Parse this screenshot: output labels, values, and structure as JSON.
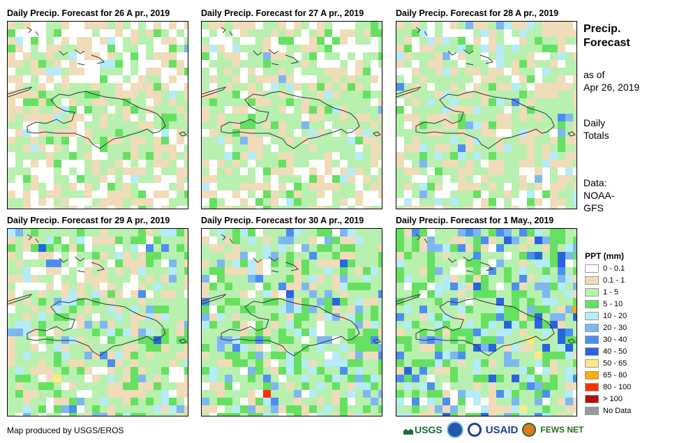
{
  "panels": [
    {
      "title": "Daily Precip. Forecast for 26 A pr., 2019"
    },
    {
      "title": "Daily Precip. Forecast for 27 A pr., 2019"
    },
    {
      "title": "Daily Precip. Forecast for 28 A pr., 2019"
    },
    {
      "title": "Daily Precip. Forecast for 29 A pr., 2019"
    },
    {
      "title": "Daily Precip. Forecast for 30 A pr., 2019"
    },
    {
      "title": "Daily Precip. Forecast for 1 May., 2019"
    }
  ],
  "side_info": {
    "heading_line1": "Precip.",
    "heading_line2": "Forecast",
    "asof_line1": "as of",
    "asof_line2": "Apr 26, 2019",
    "daily_line1": "Daily",
    "daily_line2": "Totals",
    "data_line1": "Data:",
    "data_line2": "NOAA-",
    "data_line3": "GFS"
  },
  "legend": {
    "title": "PPT (mm)",
    "items": [
      {
        "label": "0 - 0.1",
        "color": "#ffffff"
      },
      {
        "label": "0.1 - 1",
        "color": "#f0dcb8"
      },
      {
        "label": "1 - 5",
        "color": "#b8f0b0"
      },
      {
        "label": "5 - 10",
        "color": "#66e060"
      },
      {
        "label": "10 - 20",
        "color": "#b4ecfa"
      },
      {
        "label": "20 - 30",
        "color": "#7eb6f2"
      },
      {
        "label": "30 - 40",
        "color": "#4a8ff0"
      },
      {
        "label": "40 - 50",
        "color": "#2864e0"
      },
      {
        "label": "50 - 65",
        "color": "#ffea80"
      },
      {
        "label": "65 - 80",
        "color": "#ffaa00"
      },
      {
        "label": "80 - 100",
        "color": "#ff3000"
      },
      {
        "label": "> 100",
        "color": "#b01010"
      },
      {
        "label": "No Data",
        "color": "#999999"
      }
    ]
  },
  "credit": "Map produced by USGS/EROS",
  "logos": {
    "usgs": "USGS",
    "usaid": "USAID",
    "fewsnet": "FEWS NET"
  }
}
